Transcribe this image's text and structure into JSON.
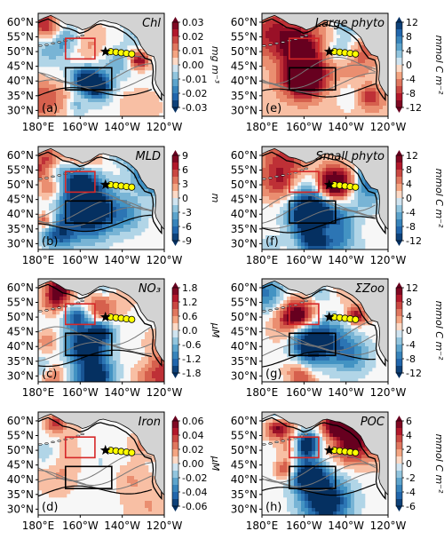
{
  "chart_data": [
    {
      "type": "heatmap",
      "panel_label": "(a)",
      "title": "Chl",
      "colorbar_label": "mg m⁻³",
      "colorbar_ticks": [
        "0.03",
        "0.02",
        "0.01",
        "0.00",
        "-0.01",
        "-0.02",
        "-0.03"
      ],
      "clim": [
        -0.03,
        0.03
      ],
      "extend": "both",
      "cmap": "RdBu_r",
      "lat_ticks": [
        "60°N",
        "55°N",
        "50°N",
        "45°N",
        "40°N",
        "35°N",
        "30°N"
      ],
      "lon_ticks": [
        "180°E",
        "160°W",
        "140°W",
        "120°W"
      ]
    },
    {
      "type": "heatmap",
      "panel_label": "(e)",
      "title": "Large phyto",
      "colorbar_label": "mmol C m⁻²",
      "colorbar_ticks": [
        "12",
        "8",
        "4",
        "0",
        "-4",
        "-8",
        "-12"
      ],
      "clim": [
        -12,
        12
      ],
      "extend": "both",
      "cmap": "RdBu_r",
      "lat_ticks": [
        "60°N",
        "55°N",
        "50°N",
        "45°N",
        "40°N",
        "35°N",
        "30°N"
      ],
      "lon_ticks": [
        "180°E",
        "160°W",
        "140°W",
        "120°W"
      ]
    },
    {
      "type": "heatmap",
      "panel_label": "(b)",
      "title": "MLD",
      "colorbar_label": "m",
      "colorbar_ticks": [
        "9",
        "6",
        "3",
        "0",
        "-3",
        "-6",
        "-9"
      ],
      "clim": [
        -9,
        9
      ],
      "extend": "both",
      "cmap": "RdBu",
      "lat_ticks": [
        "60°N",
        "55°N",
        "50°N",
        "45°N",
        "40°N",
        "35°N",
        "30°N"
      ],
      "lon_ticks": [
        "180°E",
        "160°W",
        "140°W",
        "120°W"
      ]
    },
    {
      "type": "heatmap",
      "panel_label": "(f)",
      "title": "Small phyto",
      "colorbar_label": "mmol C m⁻²",
      "colorbar_ticks": [
        "12",
        "8",
        "4",
        "0",
        "-4",
        "-8",
        "-12"
      ],
      "clim": [
        -12,
        12
      ],
      "extend": "both",
      "cmap": "RdBu_r",
      "lat_ticks": [
        "60°N",
        "55°N",
        "50°N",
        "45°N",
        "40°N",
        "35°N",
        "30°N"
      ],
      "lon_ticks": [
        "180°E",
        "160°W",
        "140°W",
        "120°W"
      ]
    },
    {
      "type": "heatmap",
      "panel_label": "(c)",
      "title": "NO₃",
      "colorbar_label": "μM",
      "colorbar_ticks": [
        "1.8",
        "1.2",
        "0.6",
        "0.0",
        "-0.6",
        "-1.2",
        "-1.8"
      ],
      "clim": [
        -1.8,
        1.8
      ],
      "extend": "both",
      "cmap": "RdBu_r",
      "lat_ticks": [
        "60°N",
        "55°N",
        "50°N",
        "45°N",
        "40°N",
        "35°N",
        "30°N"
      ],
      "lon_ticks": [
        "180°E",
        "160°W",
        "140°W",
        "120°W"
      ]
    },
    {
      "type": "heatmap",
      "panel_label": "(g)",
      "title": "ΣZoo",
      "colorbar_label": "mmol C m⁻²",
      "colorbar_ticks": [
        "12",
        "8",
        "4",
        "0",
        "-4",
        "-8",
        "-12"
      ],
      "clim": [
        -12,
        12
      ],
      "extend": "both",
      "cmap": "RdBu_r",
      "lat_ticks": [
        "60°N",
        "55°N",
        "50°N",
        "45°N",
        "40°N",
        "35°N",
        "30°N"
      ],
      "lon_ticks": [
        "180°E",
        "160°W",
        "140°W",
        "120°W"
      ]
    },
    {
      "type": "heatmap",
      "panel_label": "(d)",
      "title": "Iron",
      "colorbar_label": "μM",
      "colorbar_ticks": [
        "0.06",
        "0.04",
        "0.02",
        "0.00",
        "-0.02",
        "-0.04",
        "-0.06"
      ],
      "clim": [
        -0.06,
        0.06
      ],
      "extend": "both",
      "cmap": "RdBu_r",
      "lat_ticks": [
        "60°N",
        "55°N",
        "50°N",
        "45°N",
        "40°N",
        "35°N",
        "30°N"
      ],
      "lon_ticks": [
        "180°E",
        "160°W",
        "140°W",
        "120°W"
      ]
    },
    {
      "type": "heatmap",
      "panel_label": "(h)",
      "title": "POC",
      "colorbar_label": "mmol C m⁻²",
      "colorbar_ticks": [
        "6",
        "4",
        "2",
        "0",
        "-2",
        "-4",
        "-6"
      ],
      "clim": [
        -6,
        6
      ],
      "extend": "both",
      "cmap": "RdBu_r",
      "lat_ticks": [
        "60°N",
        "55°N",
        "50°N",
        "45°N",
        "40°N",
        "35°N",
        "30°N"
      ],
      "lon_ticks": [
        "180°E",
        "160°W",
        "140°W",
        "120°W"
      ]
    }
  ],
  "map_extent": {
    "lon": [
      180,
      240
    ],
    "lat": [
      28,
      63
    ]
  },
  "red_box": {
    "lon": [
      193,
      207
    ],
    "lat": [
      47.5,
      54.5
    ]
  },
  "black_box": {
    "lon": [
      193,
      215
    ],
    "lat": [
      37,
      44.5
    ]
  },
  "station_star": {
    "lon": 212,
    "lat": 50
  },
  "yellow_stations": [
    {
      "lon": 214.5,
      "lat": 50
    },
    {
      "lon": 217,
      "lat": 49.8
    },
    {
      "lon": 219.5,
      "lat": 49.6
    },
    {
      "lon": 222,
      "lat": 49.4
    },
    {
      "lon": 224.5,
      "lat": 49.2
    }
  ],
  "colors": {
    "land": "#d3d3d3",
    "red_box": "#d62728",
    "black_box": "#000000",
    "station": "#ffff00",
    "star": "#000000"
  }
}
